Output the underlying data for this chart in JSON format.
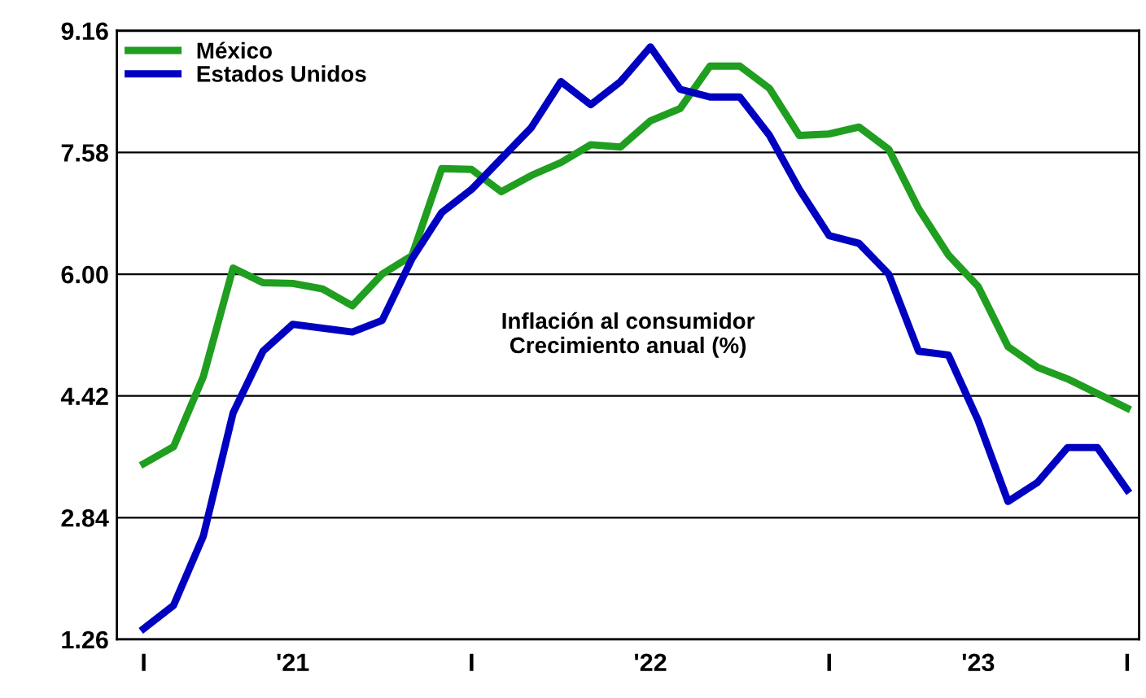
{
  "chart_data": {
    "type": "line",
    "categories": [
      "I",
      null,
      null,
      null,
      null,
      "'21",
      null,
      null,
      null,
      null,
      null,
      "I",
      null,
      null,
      null,
      null,
      null,
      "'22",
      null,
      null,
      null,
      null,
      null,
      "I",
      null,
      null,
      null,
      null,
      "'23",
      null,
      null,
      null,
      null,
      "I"
    ],
    "series": [
      {
        "name": "México",
        "color": "#1f9e1f",
        "values": [
          3.54,
          3.76,
          4.67,
          6.08,
          5.89,
          5.88,
          5.81,
          5.59,
          6.0,
          6.24,
          7.37,
          7.36,
          7.07,
          7.28,
          7.45,
          7.68,
          7.65,
          7.99,
          8.15,
          8.7,
          8.7,
          8.41,
          7.8,
          7.82,
          7.91,
          7.62,
          6.85,
          6.25,
          5.84,
          5.06,
          4.79,
          4.64,
          4.45,
          4.26
        ]
      },
      {
        "name": "Estados Unidos",
        "color": "#0000c0",
        "values": [
          1.4,
          1.7,
          2.6,
          4.2,
          5.0,
          5.35,
          5.3,
          5.25,
          5.4,
          6.2,
          6.8,
          7.1,
          7.5,
          7.9,
          8.5,
          8.2,
          8.5,
          8.95,
          8.4,
          8.3,
          8.3,
          7.8,
          7.1,
          6.5,
          6.4,
          6.0,
          5.0,
          4.95,
          4.1,
          3.05,
          3.3,
          3.75,
          3.75,
          3.2
        ]
      }
    ],
    "ylim": [
      1.26,
      9.16
    ],
    "yticks": [
      1.26,
      2.84,
      4.42,
      {
        "value": 6.0,
        "label": "6.00"
      },
      7.58,
      9.16
    ],
    "grid": "y",
    "legend": "top left",
    "marker": "none",
    "line_style": "solid",
    "annotations": [
      "Inflación al consumidor\nCrecimiento anual (%)"
    ]
  }
}
